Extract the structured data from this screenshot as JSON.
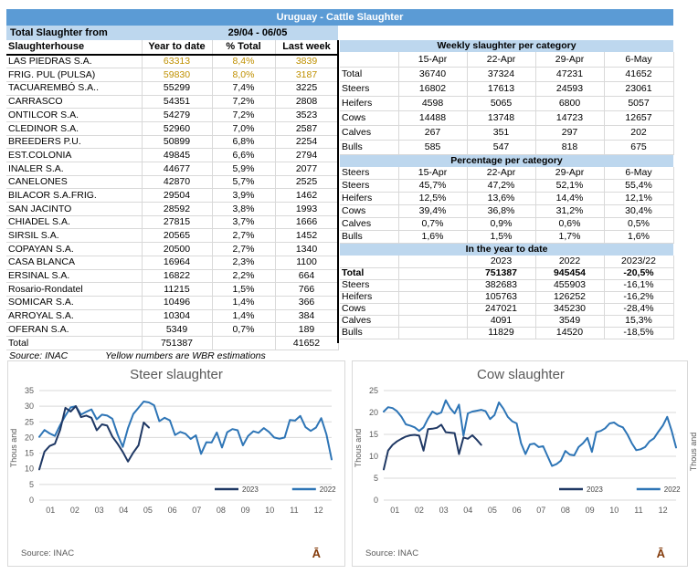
{
  "header": {
    "title": "Uruguay - Cattle Slaughter"
  },
  "summary": {
    "label": "Total Slaughter from",
    "period": "29/04 - 06/05"
  },
  "colors": {
    "title_band": "#5B9BD5",
    "section_band": "#BDD7EE",
    "estimation_text": "#BF9000",
    "line_2023": "#1F3864",
    "line_2022": "#2E75B6",
    "corner_glyph": "#843C0C"
  },
  "left_table": {
    "columns": [
      "Slaughterhouse",
      "Year to date",
      "% Total",
      "Last week"
    ],
    "rows": [
      {
        "cells": [
          "LAS PIEDRAS S.A.",
          "63313",
          "8,4%",
          "3839"
        ],
        "estimated": true
      },
      {
        "cells": [
          "FRIG. PUL (PULSA)",
          "59830",
          "8,0%",
          "3187"
        ],
        "estimated": true
      },
      {
        "cells": [
          "TACUAREMBÓ S.A..",
          "55299",
          "7,4%",
          "3225"
        ]
      },
      {
        "cells": [
          "CARRASCO",
          "54351",
          "7,2%",
          "2808"
        ]
      },
      {
        "cells": [
          "ONTILCOR S.A.",
          "54279",
          "7,2%",
          "3523"
        ]
      },
      {
        "cells": [
          "CLEDINOR S.A.",
          "52960",
          "7,0%",
          "2587"
        ]
      },
      {
        "cells": [
          "BREEDERS P.U.",
          "50899",
          "6,8%",
          "2254"
        ]
      },
      {
        "cells": [
          "EST.COLONIA",
          "49845",
          "6,6%",
          "2794"
        ]
      },
      {
        "cells": [
          "INALER S.A.",
          "44677",
          "5,9%",
          "2077"
        ]
      },
      {
        "cells": [
          "CANELONES",
          "42870",
          "5,7%",
          "2525"
        ]
      },
      {
        "cells": [
          "BILACOR S.A.FRIG.",
          "29504",
          "3,9%",
          "1462"
        ]
      },
      {
        "cells": [
          "SAN JACINTO",
          "28592",
          "3,8%",
          "1993"
        ]
      },
      {
        "cells": [
          "CHIADEL S.A.",
          "27815",
          "3,7%",
          "1666"
        ]
      },
      {
        "cells": [
          "SIRSIL S.A.",
          "20565",
          "2,7%",
          "1452"
        ]
      },
      {
        "cells": [
          "COPAYAN S.A.",
          "20500",
          "2,7%",
          "1340"
        ]
      },
      {
        "cells": [
          "CASA BLANCA",
          "16964",
          "2,3%",
          "1100"
        ]
      },
      {
        "cells": [
          "ERSINAL S.A.",
          "16822",
          "2,2%",
          "664"
        ]
      },
      {
        "cells": [
          "Rosario-Rondatel",
          "11215",
          "1,5%",
          "766"
        ]
      },
      {
        "cells": [
          "SOMICAR S.A.",
          "10496",
          "1,4%",
          "366"
        ]
      },
      {
        "cells": [
          "ARROYAL S.A.",
          "10304",
          "1,4%",
          "384"
        ]
      },
      {
        "cells": [
          "OFERAN S.A.",
          "5349",
          "0,7%",
          "189"
        ]
      },
      {
        "cells": [
          "Total",
          "751387",
          "",
          "41652"
        ]
      }
    ],
    "source_note": "Source: INAC",
    "estimation_note": "Yellow numbers are WBR estimations"
  },
  "weekly_table": {
    "title": "Weekly slaughter per category",
    "header": [
      "",
      "15-Apr",
      "22-Apr",
      "29-Apr",
      "6-May"
    ],
    "rows": [
      [
        "Total",
        "36740",
        "37324",
        "47231",
        "41652"
      ],
      [
        "Steers",
        "16802",
        "17613",
        "24593",
        "23061"
      ],
      [
        "Heifers",
        "4598",
        "5065",
        "6800",
        "5057"
      ],
      [
        "Cows",
        "14488",
        "13748",
        "14723",
        "12657"
      ],
      [
        "Calves",
        "267",
        "351",
        "297",
        "202"
      ],
      [
        "Bulls",
        "585",
        "547",
        "818",
        "675"
      ]
    ]
  },
  "percentage_table": {
    "title": "Percentage per category",
    "header": [
      "Steers",
      "15-Apr",
      "22-Apr",
      "29-Apr",
      "6-May"
    ],
    "rows": [
      [
        "Steers",
        "45,7%",
        "47,2%",
        "52,1%",
        "55,4%"
      ],
      [
        "Heifers",
        "12,5%",
        "13,6%",
        "14,4%",
        "12,1%"
      ],
      [
        "Cows",
        "39,4%",
        "36,8%",
        "31,2%",
        "30,4%"
      ],
      [
        "Calves",
        "0,7%",
        "0,9%",
        "0,6%",
        "0,5%"
      ],
      [
        "Bulls",
        "1,6%",
        "1,5%",
        "1,7%",
        "1,6%"
      ]
    ]
  },
  "ytd_table": {
    "title": "In the year to date",
    "header": [
      "",
      "",
      "2023",
      "2022",
      "2023/22"
    ],
    "bold_row": 0,
    "rows": [
      [
        "Total",
        "",
        "751387",
        "945454",
        "-20,5%"
      ],
      [
        "Steers",
        "",
        "382683",
        "455903",
        "-16,1%"
      ],
      [
        "Heifers",
        "",
        "105763",
        "126252",
        "-16,2%"
      ],
      [
        "Cows",
        "",
        "247021",
        "345230",
        "-28,4%"
      ],
      [
        "Calves",
        "",
        "4091",
        "3549",
        "15,3%"
      ],
      [
        "Bulls",
        "",
        "11829",
        "14520",
        "-18,5%"
      ]
    ]
  },
  "sliver": {
    "ylabel": "Thous and"
  },
  "chart_data": [
    {
      "type": "line",
      "title": "Steer slaughter",
      "ylabel": "Thous and",
      "source": "Source: INAC",
      "corner_glyph": "Ā",
      "ylim": [
        0,
        35
      ],
      "yticks": [
        0,
        5,
        10,
        15,
        20,
        25,
        30,
        35
      ],
      "xlabels": [
        "01",
        "02",
        "03",
        "04",
        "05",
        "06",
        "07",
        "08",
        "09",
        "10",
        "11",
        "12"
      ],
      "grid": true,
      "legend_position": "bottom-right-inside",
      "series": [
        {
          "name": "2023",
          "color": "#1F3864",
          "values": [
            9.8,
            15.5,
            17.3,
            18.0,
            22.5,
            29.5,
            28.3,
            30.0,
            26.5,
            27.0,
            26.3,
            22.3,
            24.2,
            23.8,
            20.3,
            18.0,
            15.4,
            12.3,
            15.2,
            17.5,
            24.8,
            23.2
          ]
        },
        {
          "name": "2022",
          "color": "#2E75B6",
          "values": [
            20.2,
            22.4,
            21.3,
            20.5,
            24.0,
            27.0,
            29.6,
            30.0,
            27.3,
            28.2,
            29.0,
            25.8,
            27.3,
            27.0,
            26.0,
            21.0,
            17.0,
            23.0,
            27.5,
            29.5,
            31.5,
            31.2,
            30.3,
            25.2,
            26.3,
            25.5,
            20.8,
            21.8,
            21.2,
            19.5,
            20.7,
            14.8,
            18.5,
            18.4,
            21.6,
            16.8,
            21.7,
            22.7,
            22.3,
            17.5,
            20.5,
            22.0,
            21.5,
            23.0,
            21.8,
            20.0,
            19.6,
            20.0,
            25.6,
            25.4,
            26.9,
            23.3,
            22.1,
            23.2,
            26.2,
            21.0,
            13.0
          ]
        }
      ]
    },
    {
      "type": "line",
      "title": "Cow slaughter",
      "ylabel": "Thous and",
      "source": "Source: INAC",
      "corner_glyph": "Ā",
      "ylim": [
        0,
        25
      ],
      "yticks": [
        0,
        5,
        10,
        15,
        20,
        25
      ],
      "xlabels": [
        "01",
        "02",
        "03",
        "04",
        "05",
        "06",
        "07",
        "08",
        "09",
        "10",
        "11",
        "12"
      ],
      "grid": true,
      "legend_position": "bottom-right-inside",
      "series": [
        {
          "name": "2023",
          "color": "#1F3864",
          "values": [
            7.0,
            11.3,
            12.6,
            13.4,
            14.0,
            14.5,
            14.8,
            14.9,
            14.7,
            11.3,
            16.2,
            16.3,
            16.5,
            17.2,
            15.5,
            15.4,
            15.3,
            10.5,
            14.3,
            14.0,
            14.8,
            13.8,
            12.6
          ]
        },
        {
          "name": "2022",
          "color": "#2E75B6",
          "values": [
            20.2,
            21.2,
            21.0,
            20.3,
            19.0,
            17.3,
            17.0,
            16.6,
            15.8,
            16.6,
            18.6,
            20.2,
            19.6,
            20.0,
            22.8,
            21.0,
            19.8,
            21.8,
            14.7,
            19.8,
            20.2,
            20.4,
            20.6,
            20.3,
            18.5,
            19.4,
            22.3,
            20.9,
            19.0,
            18.0,
            17.5,
            13.0,
            10.5,
            12.7,
            12.9,
            12.1,
            12.3,
            10.0,
            7.8,
            8.2,
            9.0,
            11.2,
            10.4,
            10.2,
            12.1,
            13.0,
            14.2,
            11.0,
            15.5,
            15.8,
            16.4,
            17.5,
            17.7,
            17.0,
            16.6,
            15.0,
            13.0,
            11.4,
            11.6,
            12.1,
            13.4,
            14.1,
            15.6,
            17.0,
            19.0,
            15.8,
            12.0
          ]
        }
      ]
    }
  ]
}
